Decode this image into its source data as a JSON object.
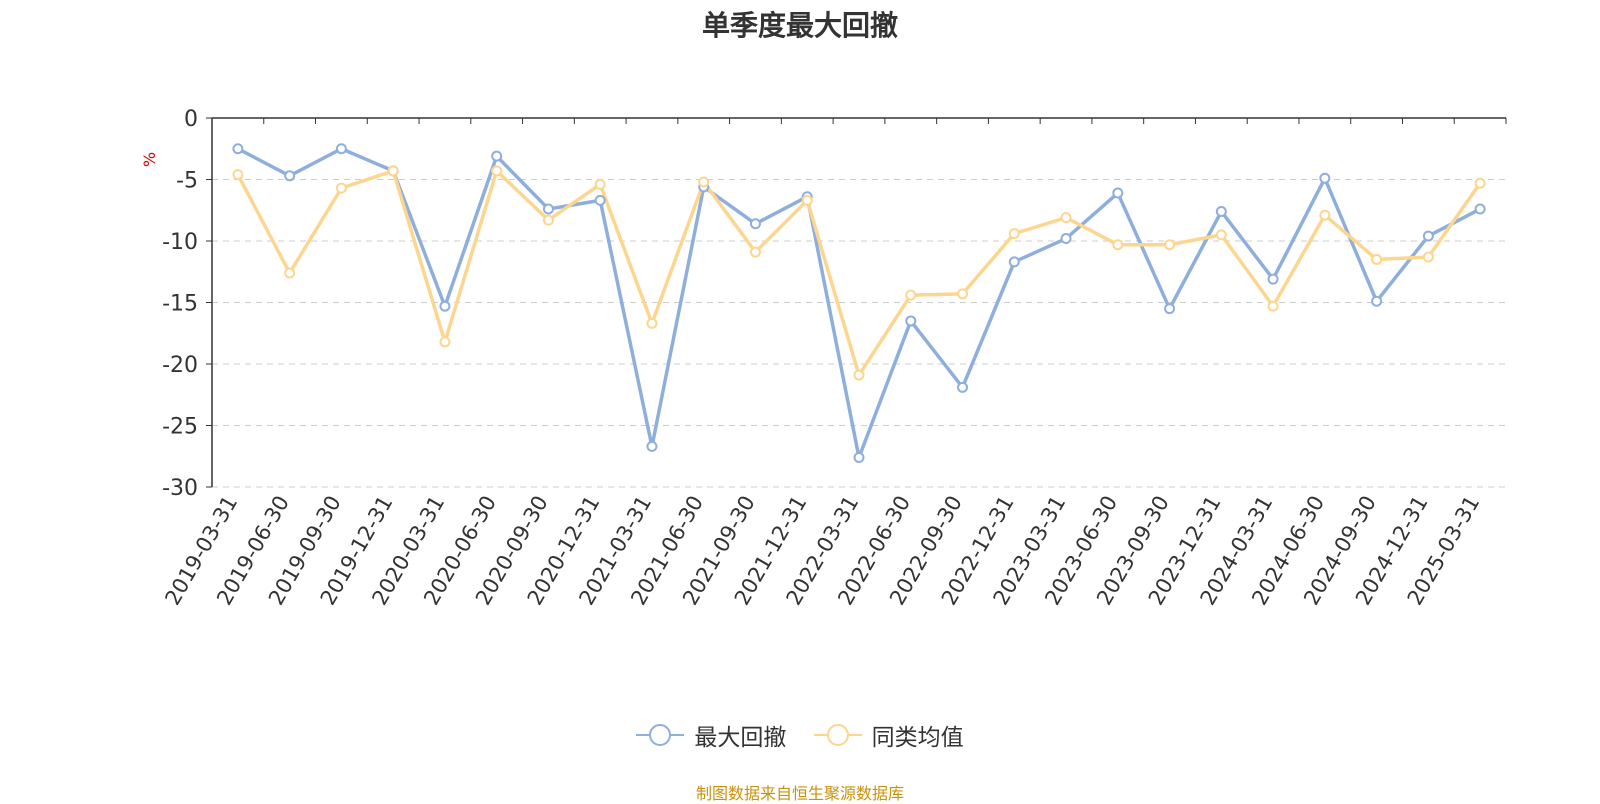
{
  "chart_data": {
    "type": "line",
    "title": "单季度最大回撤",
    "ylabel": "%",
    "ylim": [
      -30,
      0
    ],
    "yticks": [
      0,
      -5,
      -10,
      -15,
      -20,
      -25,
      -30
    ],
    "grid": true,
    "legend_position": "bottom",
    "categories": [
      "2019-03-31",
      "2019-06-30",
      "2019-09-30",
      "2019-12-31",
      "2020-03-31",
      "2020-06-30",
      "2020-09-30",
      "2020-12-31",
      "2021-03-31",
      "2021-06-30",
      "2021-09-30",
      "2021-12-31",
      "2022-03-31",
      "2022-06-30",
      "2022-09-30",
      "2022-12-31",
      "2023-03-31",
      "2023-06-30",
      "2023-09-30",
      "2023-12-31",
      "2024-03-31",
      "2024-06-30",
      "2024-09-30",
      "2024-12-31",
      "2025-03-31"
    ],
    "series": [
      {
        "name": "最大回撤",
        "color": "#8eaedc",
        "values": [
          -2.5,
          -4.7,
          -2.5,
          -4.3,
          -15.3,
          -3.1,
          -7.4,
          -6.7,
          -26.7,
          -5.6,
          -8.6,
          -6.4,
          -27.6,
          -16.5,
          -21.9,
          -11.7,
          -9.8,
          -6.1,
          -15.5,
          -7.6,
          -13.1,
          -4.9,
          -14.9,
          -9.6,
          -7.4
        ]
      },
      {
        "name": "同类均值",
        "color": "#fcd68f",
        "values": [
          -4.6,
          -12.6,
          -5.7,
          -4.3,
          -18.2,
          -4.3,
          -8.3,
          -5.4,
          -16.7,
          -5.2,
          -10.9,
          -6.7,
          -20.9,
          -14.4,
          -14.3,
          -9.4,
          -8.1,
          -10.3,
          -10.3,
          -9.5,
          -15.3,
          -7.9,
          -11.5,
          -11.3,
          -5.3
        ]
      }
    ]
  },
  "source_note": "制图数据来自恒生聚源数据库"
}
